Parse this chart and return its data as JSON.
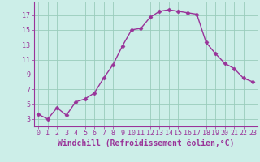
{
  "x": [
    0,
    1,
    2,
    3,
    4,
    5,
    6,
    7,
    8,
    9,
    10,
    11,
    12,
    13,
    14,
    15,
    16,
    17,
    18,
    19,
    20,
    21,
    22,
    23
  ],
  "y": [
    3.6,
    3.0,
    4.5,
    3.5,
    5.3,
    5.7,
    6.5,
    8.5,
    10.3,
    12.8,
    15.0,
    15.2,
    16.7,
    17.5,
    17.7,
    17.5,
    17.3,
    17.1,
    13.3,
    11.8,
    10.5,
    9.8,
    8.5,
    8.0
  ],
  "line_color": "#993399",
  "marker": "D",
  "markersize": 2.5,
  "linewidth": 1.0,
  "xlabel": "Windchill (Refroidissement éolien,°C)",
  "xlabel_fontsize": 7,
  "xtick_labels": [
    "0",
    "1",
    "2",
    "3",
    "4",
    "5",
    "6",
    "7",
    "8",
    "9",
    "10",
    "11",
    "12",
    "13",
    "14",
    "15",
    "16",
    "17",
    "18",
    "19",
    "20",
    "21",
    "22",
    "23"
  ],
  "ytick_values": [
    3,
    5,
    7,
    9,
    11,
    13,
    15,
    17
  ],
  "ylim": [
    2.0,
    18.8
  ],
  "xlim": [
    -0.5,
    23.5
  ],
  "background_color": "#cceee8",
  "grid_color": "#99ccbb",
  "tick_color": "#993399",
  "tick_fontsize": 6.0,
  "font_family": "monospace"
}
